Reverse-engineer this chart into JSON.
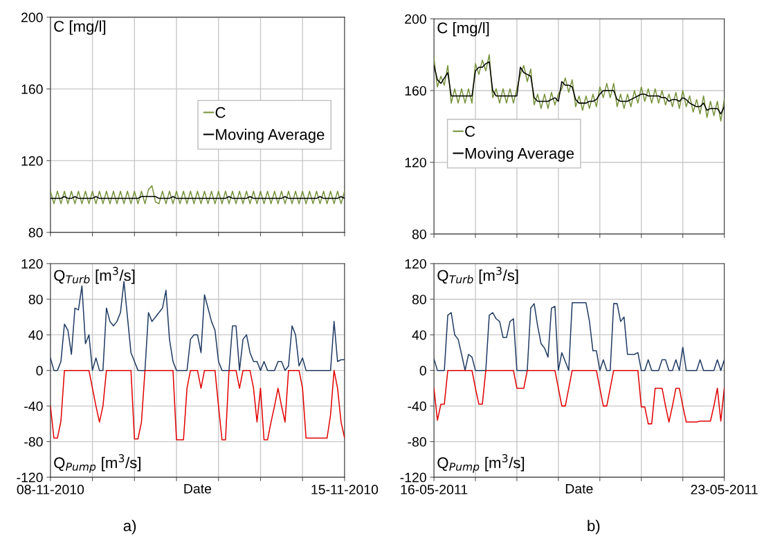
{
  "chart_data": [
    {
      "type": "line",
      "ylabel": "C [mg/l]",
      "grid": true,
      "legend": "right",
      "tick_labels": "y",
      "xlim": [
        "2010-11-08",
        "2010-11-15"
      ],
      "ylim": [
        80,
        200
      ],
      "yticks": [
        80,
        120,
        160,
        200
      ],
      "xticks": [
        {
          "value": "2010-11-08",
          "label": null
        },
        {
          "value": "2010-11-09",
          "label": null
        },
        {
          "value": "2010-11-10",
          "label": null
        },
        {
          "value": "2010-11-11",
          "label": null
        },
        {
          "value": "2010-11-12",
          "label": null
        },
        {
          "value": "2010-11-13",
          "label": null
        },
        {
          "value": "2010-11-14",
          "label": null
        },
        {
          "value": "2010-11-15",
          "label": null
        }
      ],
      "x": [
        "2010-11-08T00:00",
        "2010-11-08T02:00",
        "2010-11-08T04:00",
        "2010-11-08T06:00",
        "2010-11-08T08:00",
        "2010-11-08T10:00",
        "2010-11-08T12:00",
        "2010-11-08T14:00",
        "2010-11-08T16:00",
        "2010-11-08T18:00",
        "2010-11-08T20:00",
        "2010-11-08T22:00",
        "2010-11-09T00:00",
        "2010-11-09T02:00",
        "2010-11-09T04:00",
        "2010-11-09T06:00",
        "2010-11-09T08:00",
        "2010-11-09T10:00",
        "2010-11-09T12:00",
        "2010-11-09T14:00",
        "2010-11-09T16:00",
        "2010-11-09T18:00",
        "2010-11-09T20:00",
        "2010-11-09T22:00",
        "2010-11-10T00:00",
        "2010-11-10T02:00",
        "2010-11-10T04:00",
        "2010-11-10T06:00",
        "2010-11-10T08:00",
        "2010-11-10T10:00",
        "2010-11-10T12:00",
        "2010-11-10T14:00",
        "2010-11-10T16:00",
        "2010-11-10T18:00",
        "2010-11-10T20:00",
        "2010-11-10T22:00",
        "2010-11-11T00:00",
        "2010-11-11T02:00",
        "2010-11-11T04:00",
        "2010-11-11T06:00",
        "2010-11-11T08:00",
        "2010-11-11T10:00",
        "2010-11-11T12:00",
        "2010-11-11T14:00",
        "2010-11-11T16:00",
        "2010-11-11T18:00",
        "2010-11-11T20:00",
        "2010-11-11T22:00",
        "2010-11-12T00:00",
        "2010-11-12T02:00",
        "2010-11-12T04:00",
        "2010-11-12T06:00",
        "2010-11-12T08:00",
        "2010-11-12T10:00",
        "2010-11-12T12:00",
        "2010-11-12T14:00",
        "2010-11-12T16:00",
        "2010-11-12T18:00",
        "2010-11-12T20:00",
        "2010-11-12T22:00",
        "2010-11-13T00:00",
        "2010-11-13T02:00",
        "2010-11-13T04:00",
        "2010-11-13T06:00",
        "2010-11-13T08:00",
        "2010-11-13T10:00",
        "2010-11-13T12:00",
        "2010-11-13T14:00",
        "2010-11-13T16:00",
        "2010-11-13T18:00",
        "2010-11-13T20:00",
        "2010-11-13T22:00",
        "2010-11-14T00:00",
        "2010-11-14T02:00",
        "2010-11-14T04:00",
        "2010-11-14T06:00",
        "2010-11-14T08:00",
        "2010-11-14T10:00",
        "2010-11-14T12:00",
        "2010-11-14T14:00",
        "2010-11-14T16:00",
        "2010-11-14T18:00",
        "2010-11-14T20:00",
        "2010-11-14T22:00",
        "2010-11-15T00:00"
      ],
      "series": [
        {
          "name": "C",
          "color": "#77933c",
          "values": [
            103,
            96,
            103,
            96,
            103,
            96,
            103,
            96,
            103,
            96,
            103,
            96,
            103,
            96,
            103,
            96,
            103,
            96,
            103,
            96,
            103,
            96,
            103,
            96,
            103,
            96,
            103,
            96,
            104,
            106,
            97,
            96,
            103,
            96,
            103,
            96,
            103,
            96,
            103,
            96,
            103,
            96,
            103,
            96,
            103,
            96,
            103,
            96,
            103,
            96,
            103,
            96,
            103,
            96,
            103,
            96,
            103,
            96,
            103,
            96,
            103,
            96,
            103,
            96,
            103,
            96,
            103,
            96,
            103,
            96,
            103,
            96,
            103,
            96,
            103,
            96,
            103,
            96,
            103,
            96,
            103,
            96,
            103,
            96,
            103
          ]
        },
        {
          "name": "Moving Average",
          "color": "#000000",
          "values": [
            99,
            99,
            99,
            99,
            100,
            99,
            99,
            100,
            99,
            99,
            99,
            99,
            99,
            100,
            99,
            99,
            99,
            99,
            99,
            99,
            99,
            99,
            99,
            99,
            99,
            99,
            100,
            100,
            100,
            100,
            100,
            99,
            99,
            99,
            99,
            100,
            99,
            99,
            99,
            99,
            99,
            99,
            99,
            99,
            99,
            99,
            99,
            99,
            99,
            99,
            99,
            100,
            99,
            99,
            99,
            99,
            99,
            100,
            99,
            99,
            99,
            99,
            99,
            99,
            99,
            99,
            99,
            100,
            99,
            99,
            99,
            99,
            99,
            99,
            99,
            99,
            99,
            100,
            99,
            99,
            99,
            99,
            99,
            100,
            99
          ]
        }
      ]
    },
    {
      "type": "line",
      "ylabel": "C [mg/l]",
      "grid": true,
      "legend": "left",
      "tick_labels": "y",
      "xlim": [
        "2011-05-16",
        "2011-05-23"
      ],
      "ylim": [
        80,
        200
      ],
      "yticks": [
        80,
        120,
        160,
        200
      ],
      "xticks": [
        {
          "value": "2011-05-16",
          "label": null
        },
        {
          "value": "2011-05-17",
          "label": null
        },
        {
          "value": "2011-05-18",
          "label": null
        },
        {
          "value": "2011-05-19",
          "label": null
        },
        {
          "value": "2011-05-20",
          "label": null
        },
        {
          "value": "2011-05-21",
          "label": null
        },
        {
          "value": "2011-05-22",
          "label": null
        },
        {
          "value": "2011-05-23",
          "label": null
        }
      ],
      "x": [
        "2011-05-16T00:00",
        "2011-05-16T02:00",
        "2011-05-16T04:00",
        "2011-05-16T06:00",
        "2011-05-16T08:00",
        "2011-05-16T10:00",
        "2011-05-16T12:00",
        "2011-05-16T14:00",
        "2011-05-16T16:00",
        "2011-05-16T18:00",
        "2011-05-16T20:00",
        "2011-05-16T22:00",
        "2011-05-17T00:00",
        "2011-05-17T02:00",
        "2011-05-17T04:00",
        "2011-05-17T06:00",
        "2011-05-17T08:00",
        "2011-05-17T10:00",
        "2011-05-17T12:00",
        "2011-05-17T14:00",
        "2011-05-17T16:00",
        "2011-05-17T18:00",
        "2011-05-17T20:00",
        "2011-05-17T22:00",
        "2011-05-18T00:00",
        "2011-05-18T02:00",
        "2011-05-18T04:00",
        "2011-05-18T06:00",
        "2011-05-18T08:00",
        "2011-05-18T10:00",
        "2011-05-18T12:00",
        "2011-05-18T14:00",
        "2011-05-18T16:00",
        "2011-05-18T18:00",
        "2011-05-18T20:00",
        "2011-05-18T22:00",
        "2011-05-19T00:00",
        "2011-05-19T02:00",
        "2011-05-19T04:00",
        "2011-05-19T06:00",
        "2011-05-19T08:00",
        "2011-05-19T10:00",
        "2011-05-19T12:00",
        "2011-05-19T14:00",
        "2011-05-19T16:00",
        "2011-05-19T18:00",
        "2011-05-19T20:00",
        "2011-05-19T22:00",
        "2011-05-20T00:00",
        "2011-05-20T02:00",
        "2011-05-20T04:00",
        "2011-05-20T06:00",
        "2011-05-20T08:00",
        "2011-05-20T10:00",
        "2011-05-20T12:00",
        "2011-05-20T14:00",
        "2011-05-20T16:00",
        "2011-05-20T18:00",
        "2011-05-20T20:00",
        "2011-05-20T22:00",
        "2011-05-21T00:00",
        "2011-05-21T02:00",
        "2011-05-21T04:00",
        "2011-05-21T06:00",
        "2011-05-21T08:00",
        "2011-05-21T10:00",
        "2011-05-21T12:00",
        "2011-05-21T14:00",
        "2011-05-21T16:00",
        "2011-05-21T18:00",
        "2011-05-21T20:00",
        "2011-05-21T22:00",
        "2011-05-22T00:00",
        "2011-05-22T02:00",
        "2011-05-22T04:00",
        "2011-05-22T06:00",
        "2011-05-22T08:00",
        "2011-05-22T10:00",
        "2011-05-22T12:00",
        "2011-05-22T14:00",
        "2011-05-22T16:00",
        "2011-05-22T18:00",
        "2011-05-22T20:00",
        "2011-05-22T22:00",
        "2011-05-23T00:00"
      ],
      "series": [
        {
          "name": "C",
          "color": "#77933c",
          "values": [
            178,
            162,
            168,
            163,
            174,
            153,
            161,
            153,
            161,
            153,
            161,
            153,
            175,
            169,
            177,
            171,
            180,
            156,
            161,
            153,
            161,
            153,
            161,
            153,
            161,
            169,
            174,
            165,
            172,
            152,
            158,
            150,
            158,
            150,
            159,
            152,
            158,
            161,
            167,
            159,
            166,
            151,
            157,
            149,
            157,
            150,
            158,
            151,
            162,
            156,
            164,
            156,
            164,
            151,
            158,
            150,
            158,
            151,
            160,
            153,
            162,
            154,
            161,
            153,
            161,
            153,
            160,
            152,
            158,
            151,
            159,
            150,
            160,
            151,
            157,
            148,
            155,
            147,
            157,
            145,
            154,
            146,
            154,
            143,
            155
          ]
        },
        {
          "name": "Moving Average",
          "color": "#000000",
          "values": [
            174,
            166,
            164,
            167,
            170,
            157,
            157,
            157,
            157,
            157,
            157,
            157,
            171,
            173,
            173,
            175,
            176,
            160,
            157,
            157,
            157,
            157,
            157,
            157,
            157,
            173,
            170,
            169,
            168,
            156,
            154,
            154,
            154,
            154,
            155,
            156,
            154,
            165,
            163,
            163,
            162,
            155,
            153,
            153,
            153,
            154,
            154,
            155,
            158,
            160,
            160,
            160,
            160,
            155,
            154,
            154,
            154,
            155,
            156,
            157,
            158,
            158,
            157,
            157,
            157,
            157,
            156,
            156,
            154,
            155,
            155,
            154,
            156,
            155,
            153,
            152,
            151,
            151,
            153,
            149,
            150,
            150,
            150,
            147,
            151
          ]
        }
      ]
    },
    {
      "type": "line",
      "ylabel": "Q$_{Turb}$ [m$^{3}$/s]",
      "xlabel": "Date",
      "annotations": [
        "Q$_{Pump}$ [m$^{3}$/s]",
        "a)"
      ],
      "grid": true,
      "xlim": [
        "2010-11-08",
        "2010-11-15"
      ],
      "ylim": [
        -120,
        120
      ],
      "yticks": [
        -120,
        -80,
        -40,
        0,
        40,
        80,
        120
      ],
      "xticks": [
        {
          "value": "2010-11-08",
          "label": "08-11-2010"
        },
        {
          "value": "2010-11-09",
          "label": null
        },
        {
          "value": "2010-11-10",
          "label": null
        },
        {
          "value": "2010-11-11",
          "label": null
        },
        {
          "value": "2010-11-12",
          "label": null
        },
        {
          "value": "2010-11-13",
          "label": null
        },
        {
          "value": "2010-11-14",
          "label": null
        },
        {
          "value": "2010-11-15",
          "label": "15-11-2010"
        }
      ],
      "x": [
        "2010-11-08T00:00",
        "2010-11-08T02:00",
        "2010-11-08T04:00",
        "2010-11-08T06:00",
        "2010-11-08T08:00",
        "2010-11-08T10:00",
        "2010-11-08T12:00",
        "2010-11-08T14:00",
        "2010-11-08T16:00",
        "2010-11-08T18:00",
        "2010-11-08T20:00",
        "2010-11-08T22:00",
        "2010-11-09T00:00",
        "2010-11-09T02:00",
        "2010-11-09T04:00",
        "2010-11-09T06:00",
        "2010-11-09T08:00",
        "2010-11-09T10:00",
        "2010-11-09T12:00",
        "2010-11-09T14:00",
        "2010-11-09T16:00",
        "2010-11-09T18:00",
        "2010-11-09T20:00",
        "2010-11-09T22:00",
        "2010-11-10T00:00",
        "2010-11-10T02:00",
        "2010-11-10T04:00",
        "2010-11-10T06:00",
        "2010-11-10T08:00",
        "2010-11-10T10:00",
        "2010-11-10T12:00",
        "2010-11-10T14:00",
        "2010-11-10T16:00",
        "2010-11-10T18:00",
        "2010-11-10T20:00",
        "2010-11-10T22:00",
        "2010-11-11T00:00",
        "2010-11-11T02:00",
        "2010-11-11T04:00",
        "2010-11-11T06:00",
        "2010-11-11T08:00",
        "2010-11-11T10:00",
        "2010-11-11T12:00",
        "2010-11-11T14:00",
        "2010-11-11T16:00",
        "2010-11-11T18:00",
        "2010-11-11T20:00",
        "2010-11-11T22:00",
        "2010-11-12T00:00",
        "2010-11-12T02:00",
        "2010-11-12T04:00",
        "2010-11-12T06:00",
        "2010-11-12T08:00",
        "2010-11-12T10:00",
        "2010-11-12T12:00",
        "2010-11-12T14:00",
        "2010-11-12T16:00",
        "2010-11-12T18:00",
        "2010-11-12T20:00",
        "2010-11-12T22:00",
        "2010-11-13T00:00",
        "2010-11-13T02:00",
        "2010-11-13T04:00",
        "2010-11-13T06:00",
        "2010-11-13T08:00",
        "2010-11-13T10:00",
        "2010-11-13T12:00",
        "2010-11-13T14:00",
        "2010-11-13T16:00",
        "2010-11-13T18:00",
        "2010-11-13T20:00",
        "2010-11-13T22:00",
        "2010-11-14T00:00",
        "2010-11-14T02:00",
        "2010-11-14T04:00",
        "2010-11-14T06:00",
        "2010-11-14T08:00",
        "2010-11-14T10:00",
        "2010-11-14T12:00",
        "2010-11-14T14:00",
        "2010-11-14T16:00",
        "2010-11-14T18:00",
        "2010-11-14T20:00",
        "2010-11-14T22:00",
        "2010-11-15T00:00"
      ],
      "series": [
        {
          "color": "#1f3b63",
          "values": [
            14,
            0,
            0,
            10,
            52,
            45,
            18,
            70,
            68,
            95,
            30,
            40,
            0,
            14,
            0,
            0,
            70,
            55,
            50,
            55,
            65,
            100,
            60,
            20,
            10,
            0,
            0,
            0,
            65,
            55,
            60,
            65,
            70,
            90,
            35,
            10,
            0,
            0,
            0,
            0,
            35,
            40,
            40,
            20,
            85,
            70,
            55,
            45,
            10,
            0,
            0,
            0,
            50,
            50,
            0,
            35,
            40,
            20,
            10,
            10,
            0,
            10,
            0,
            0,
            0,
            10,
            10,
            0,
            5,
            50,
            40,
            5,
            14,
            0,
            0,
            0,
            0,
            0,
            0,
            0,
            0,
            55,
            10,
            12,
            12
          ]
        },
        {
          "color": "#e00000",
          "values": [
            -40,
            -76,
            -76,
            -57,
            0,
            0,
            0,
            0,
            0,
            0,
            0,
            0,
            -20,
            -40,
            -58,
            -40,
            0,
            0,
            0,
            0,
            0,
            0,
            0,
            0,
            -77,
            -77,
            -58,
            0,
            0,
            0,
            0,
            0,
            0,
            0,
            0,
            0,
            -78,
            -78,
            -78,
            -20,
            0,
            0,
            0,
            -20,
            0,
            0,
            0,
            0,
            -40,
            -78,
            -78,
            0,
            0,
            0,
            -20,
            0,
            0,
            0,
            -20,
            -58,
            -20,
            -78,
            -78,
            -58,
            -40,
            -20,
            -40,
            -58,
            0,
            0,
            0,
            0,
            -20,
            -76,
            -76,
            -76,
            -76,
            -76,
            -76,
            -76,
            -50,
            0,
            -20,
            -58,
            -76
          ]
        }
      ]
    },
    {
      "type": "line",
      "ylabel": "Q$_{Turb}$ [m$^{3}$/s]",
      "xlabel": "Date",
      "annotations": [
        "Q$_{Pump}$ [m$^{3}$/s]",
        "b)"
      ],
      "grid": true,
      "xlim": [
        "2011-05-16",
        "2011-05-23"
      ],
      "ylim": [
        -120,
        120
      ],
      "yticks": [
        -120,
        -80,
        -40,
        0,
        40,
        80,
        120
      ],
      "xticks": [
        {
          "value": "2011-05-16",
          "label": "16-05-2011"
        },
        {
          "value": "2011-05-17",
          "label": null
        },
        {
          "value": "2011-05-18",
          "label": null
        },
        {
          "value": "2011-05-19",
          "label": null
        },
        {
          "value": "2011-05-20",
          "label": null
        },
        {
          "value": "2011-05-21",
          "label": null
        },
        {
          "value": "2011-05-22",
          "label": null
        },
        {
          "value": "2011-05-23",
          "label": "23-05-2011"
        }
      ],
      "x": [
        "2011-05-16T00:00",
        "2011-05-16T02:00",
        "2011-05-16T04:00",
        "2011-05-16T06:00",
        "2011-05-16T08:00",
        "2011-05-16T10:00",
        "2011-05-16T12:00",
        "2011-05-16T14:00",
        "2011-05-16T16:00",
        "2011-05-16T18:00",
        "2011-05-16T20:00",
        "2011-05-16T22:00",
        "2011-05-17T00:00",
        "2011-05-17T02:00",
        "2011-05-17T04:00",
        "2011-05-17T06:00",
        "2011-05-17T08:00",
        "2011-05-17T10:00",
        "2011-05-17T12:00",
        "2011-05-17T14:00",
        "2011-05-17T16:00",
        "2011-05-17T18:00",
        "2011-05-17T20:00",
        "2011-05-17T22:00",
        "2011-05-18T00:00",
        "2011-05-18T02:00",
        "2011-05-18T04:00",
        "2011-05-18T06:00",
        "2011-05-18T08:00",
        "2011-05-18T10:00",
        "2011-05-18T12:00",
        "2011-05-18T14:00",
        "2011-05-18T16:00",
        "2011-05-18T18:00",
        "2011-05-18T20:00",
        "2011-05-18T22:00",
        "2011-05-19T00:00",
        "2011-05-19T02:00",
        "2011-05-19T04:00",
        "2011-05-19T06:00",
        "2011-05-19T08:00",
        "2011-05-19T10:00",
        "2011-05-19T12:00",
        "2011-05-19T14:00",
        "2011-05-19T16:00",
        "2011-05-19T18:00",
        "2011-05-19T20:00",
        "2011-05-19T22:00",
        "2011-05-20T00:00",
        "2011-05-20T02:00",
        "2011-05-20T04:00",
        "2011-05-20T06:00",
        "2011-05-20T08:00",
        "2011-05-20T10:00",
        "2011-05-20T12:00",
        "2011-05-20T14:00",
        "2011-05-20T16:00",
        "2011-05-20T18:00",
        "2011-05-20T20:00",
        "2011-05-20T22:00",
        "2011-05-21T00:00",
        "2011-05-21T02:00",
        "2011-05-21T04:00",
        "2011-05-21T06:00",
        "2011-05-21T08:00",
        "2011-05-21T10:00",
        "2011-05-21T12:00",
        "2011-05-21T14:00",
        "2011-05-21T16:00",
        "2011-05-21T18:00",
        "2011-05-21T20:00",
        "2011-05-21T22:00",
        "2011-05-22T00:00",
        "2011-05-22T02:00",
        "2011-05-22T04:00",
        "2011-05-22T06:00",
        "2011-05-22T08:00",
        "2011-05-22T10:00",
        "2011-05-22T12:00",
        "2011-05-22T14:00",
        "2011-05-22T16:00",
        "2011-05-22T18:00",
        "2011-05-22T20:00",
        "2011-05-22T22:00",
        "2011-05-23T00:00"
      ],
      "series": [
        {
          "color": "#1f3b63",
          "values": [
            13,
            0,
            0,
            0,
            62,
            65,
            40,
            35,
            18,
            0,
            18,
            15,
            0,
            0,
            0,
            0,
            62,
            65,
            58,
            55,
            37,
            37,
            55,
            58,
            0,
            0,
            0,
            0,
            70,
            75,
            50,
            30,
            25,
            15,
            70,
            72,
            0,
            20,
            10,
            0,
            76,
            76,
            76,
            76,
            76,
            55,
            22,
            22,
            0,
            12,
            0,
            0,
            75,
            75,
            55,
            60,
            18,
            18,
            18,
            20,
            0,
            0,
            12,
            0,
            0,
            0,
            12,
            12,
            0,
            0,
            12,
            0,
            26,
            0,
            0,
            0,
            0,
            12,
            0,
            0,
            0,
            0,
            12,
            0,
            12
          ]
        },
        {
          "color": "#e00000",
          "values": [
            -20,
            -56,
            -38,
            -38,
            0,
            0,
            0,
            0,
            0,
            0,
            0,
            0,
            -20,
            -38,
            -38,
            0,
            0,
            0,
            0,
            0,
            0,
            0,
            0,
            0,
            -20,
            -20,
            -20,
            0,
            0,
            0,
            0,
            0,
            0,
            0,
            0,
            0,
            -20,
            -40,
            -40,
            -20,
            0,
            0,
            0,
            0,
            0,
            0,
            0,
            0,
            -20,
            -40,
            -40,
            -20,
            0,
            0,
            0,
            0,
            0,
            0,
            0,
            0,
            -41,
            -41,
            -60,
            -60,
            -20,
            -20,
            -20,
            -40,
            -58,
            -40,
            -20,
            -20,
            -40,
            -58,
            -58,
            -58,
            -58,
            -57,
            -57,
            -57,
            -57,
            -40,
            -20,
            -57,
            -20
          ]
        }
      ]
    }
  ]
}
